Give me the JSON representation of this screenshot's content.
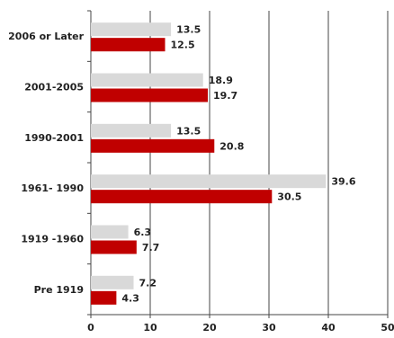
{
  "chart_data": {
    "type": "bar",
    "orientation": "horizontal",
    "categories": [
      "2006 or Later",
      "2001-2005",
      "1990-2001",
      "1961- 1990",
      "1919 -1960",
      "Pre 1919"
    ],
    "series": [
      {
        "color": "#d9d9d9",
        "values": [
          13.5,
          18.9,
          13.5,
          39.6,
          6.3,
          7.2
        ]
      },
      {
        "color": "#c00000",
        "values": [
          12.5,
          19.7,
          20.8,
          30.5,
          7.7,
          4.3
        ]
      }
    ],
    "xticks": [
      "0",
      "10",
      "20",
      "30",
      "40",
      "50"
    ],
    "xlim": [
      0,
      50
    ],
    "grid": true
  }
}
